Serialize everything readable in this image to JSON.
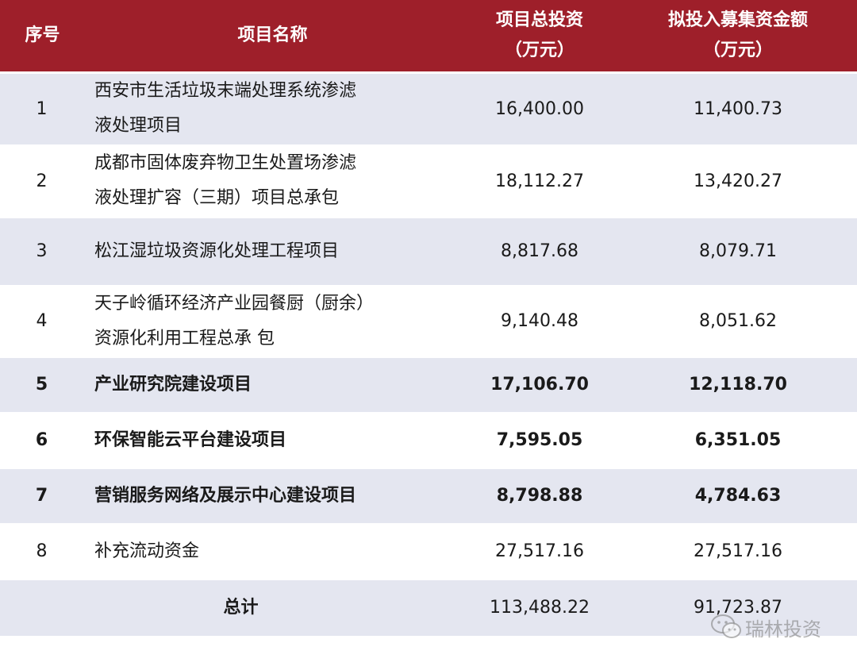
{
  "header": {
    "no": "序号",
    "name": "项目名称",
    "total_line1": "项目总投资",
    "total_line2": "（万元）",
    "fund_line1": "拟投入募集资金额",
    "fund_line2": "（万元）"
  },
  "rows": [
    {
      "no": "1",
      "name_line1": "西安市生活垃圾末端处理系统渗滤",
      "name_line2": "液处理项目",
      "total": "16,400.00",
      "fund": "11,400.73"
    },
    {
      "no": "2",
      "name_line1": "成都市固体废弃物卫生处置场渗滤",
      "name_line2": "液处理扩容（三期）项目总承包",
      "total": "18,112.27",
      "fund": "13,420.27"
    },
    {
      "no": "3",
      "name": "松江湿垃圾资源化处理工程项目",
      "total": "8,817.68",
      "fund": "8,079.71"
    },
    {
      "no": "4",
      "name_line1": "天子岭循环经济产业园餐厨（厨余）",
      "name_line2": "资源化利用工程总承  包",
      "total": "9,140.48",
      "fund": "8,051.62"
    },
    {
      "no": "5",
      "name": "产业研究院建设项目",
      "total": "17,106.70",
      "fund": "12,118.70"
    },
    {
      "no": "6",
      "name": "环保智能云平台建设项目",
      "total": "7,595.05",
      "fund": "6,351.05"
    },
    {
      "no": "7",
      "name": "营销服务网络及展示中心建设项目",
      "total": "8,798.88",
      "fund": "4,784.63"
    },
    {
      "no": "8",
      "name": "补充流动资金",
      "total": "27,517.16",
      "fund": "27,517.16"
    }
  ],
  "total_row": {
    "label": "总计",
    "total": "113,488.22",
    "fund": "91,723.87"
  },
  "watermark": {
    "text": "瑞林投资",
    "icon": "wechat-icon"
  },
  "colors": {
    "header_bg": "#9e1f2a",
    "row_shade": "#e4e6f0"
  }
}
